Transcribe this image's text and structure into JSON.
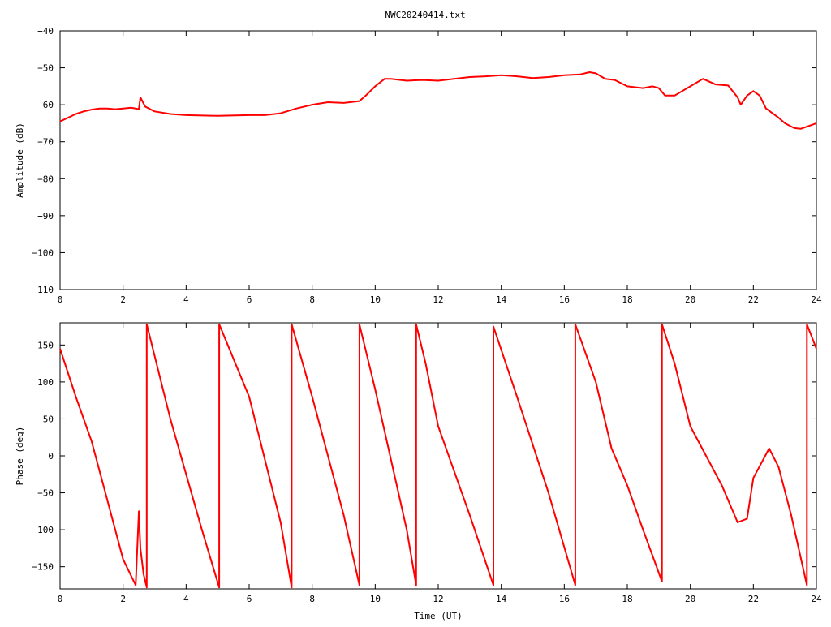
{
  "title": "NWC20240414.txt",
  "colors": {
    "series": "#ff0000",
    "axes": "#000000",
    "background": "#ffffff"
  },
  "chart_data": [
    {
      "type": "line",
      "title": "NWC20240414.txt",
      "xlabel": "",
      "ylabel": "Amplitude (dB)",
      "xlim": [
        0,
        24
      ],
      "ylim": [
        -110,
        -40
      ],
      "xticks": [
        0,
        2,
        4,
        6,
        8,
        10,
        12,
        14,
        16,
        18,
        20,
        22,
        24
      ],
      "yticks": [
        -110,
        -100,
        -90,
        -80,
        -70,
        -60,
        -50,
        -40
      ],
      "grid": false,
      "legend": "none",
      "series": [
        {
          "x": [
            0,
            0.25,
            0.5,
            0.75,
            1.0,
            1.25,
            1.5,
            1.75,
            2.0,
            2.25,
            2.4,
            2.5,
            2.55,
            2.7,
            3.0,
            3.5,
            4.0,
            5.0,
            6.0,
            6.5,
            7.0,
            7.5,
            8.0,
            8.5,
            9.0,
            9.5,
            9.7,
            10.0,
            10.3,
            10.5,
            11.0,
            11.5,
            12.0,
            12.5,
            13.0,
            13.5,
            14.0,
            14.5,
            15.0,
            15.5,
            16.0,
            16.5,
            16.8,
            17.0,
            17.3,
            17.6,
            18.0,
            18.5,
            18.8,
            19.0,
            19.2,
            19.5,
            20.0,
            20.4,
            20.8,
            21.2,
            21.5,
            21.6,
            21.8,
            22.0,
            22.2,
            22.4,
            22.8,
            23.0,
            23.3,
            23.5,
            24.0
          ],
          "y": [
            -64.5,
            -63.5,
            -62.5,
            -61.8,
            -61.3,
            -61.0,
            -61.0,
            -61.2,
            -61.0,
            -60.8,
            -61.0,
            -61.2,
            -58.0,
            -60.5,
            -61.8,
            -62.5,
            -62.8,
            -63.0,
            -62.8,
            -62.8,
            -62.3,
            -61.0,
            -60.0,
            -59.3,
            -59.5,
            -59.0,
            -57.5,
            -55.0,
            -53.0,
            -53.0,
            -53.5,
            -53.3,
            -53.5,
            -53.0,
            -52.5,
            -52.3,
            -52.0,
            -52.3,
            -52.8,
            -52.5,
            -52.0,
            -51.8,
            -51.2,
            -51.5,
            -53.0,
            -53.3,
            -55.0,
            -55.5,
            -55.0,
            -55.5,
            -57.5,
            -57.5,
            -55.0,
            -53.0,
            -54.5,
            -54.8,
            -58.0,
            -60.0,
            -57.5,
            -56.3,
            -57.5,
            -61.0,
            -63.5,
            -65.0,
            -66.3,
            -66.5,
            -65.0
          ]
        }
      ]
    },
    {
      "type": "line",
      "title": "",
      "xlabel": "Time (UT)",
      "ylabel": "Phase (deg)",
      "xlim": [
        0,
        24
      ],
      "ylim": [
        -180,
        180
      ],
      "xticks": [
        0,
        2,
        4,
        6,
        8,
        10,
        12,
        14,
        16,
        18,
        20,
        22,
        24
      ],
      "yticks": [
        -150,
        -100,
        -50,
        0,
        50,
        100,
        150
      ],
      "grid": false,
      "legend": "none",
      "series": [
        {
          "x": [
            0,
            0.5,
            1.0,
            1.5,
            2.0,
            2.4,
            2.5,
            2.55,
            2.65,
            2.75,
            2.75,
            3.5,
            4.5,
            5.05,
            5.05,
            6.0,
            7.0,
            7.35,
            7.35,
            8.0,
            9.0,
            9.5,
            9.5,
            10.0,
            11.0,
            11.3,
            11.3,
            11.6,
            12.0,
            13.0,
            13.75,
            13.75,
            14.5,
            15.5,
            16.35,
            16.35,
            17.0,
            17.5,
            18.0,
            18.5,
            19.1,
            19.1,
            19.5,
            20.0,
            20.5,
            21.0,
            21.5,
            21.8,
            22.0,
            22.5,
            22.8,
            23.2,
            23.7,
            23.7,
            24.0
          ],
          "y": [
            145,
            80,
            20,
            -60,
            -140,
            -175,
            -75,
            -125,
            -160,
            -178,
            178,
            50,
            -100,
            -178,
            178,
            80,
            -90,
            -178,
            178,
            80,
            -80,
            -175,
            178,
            90,
            -100,
            -175,
            178,
            125,
            40,
            -80,
            -175,
            175,
            80,
            -50,
            -175,
            178,
            100,
            10,
            -40,
            -100,
            -170,
            178,
            125,
            40,
            0,
            -40,
            -90,
            -85,
            -30,
            10,
            -15,
            -80,
            -175,
            178,
            145
          ]
        }
      ]
    }
  ]
}
